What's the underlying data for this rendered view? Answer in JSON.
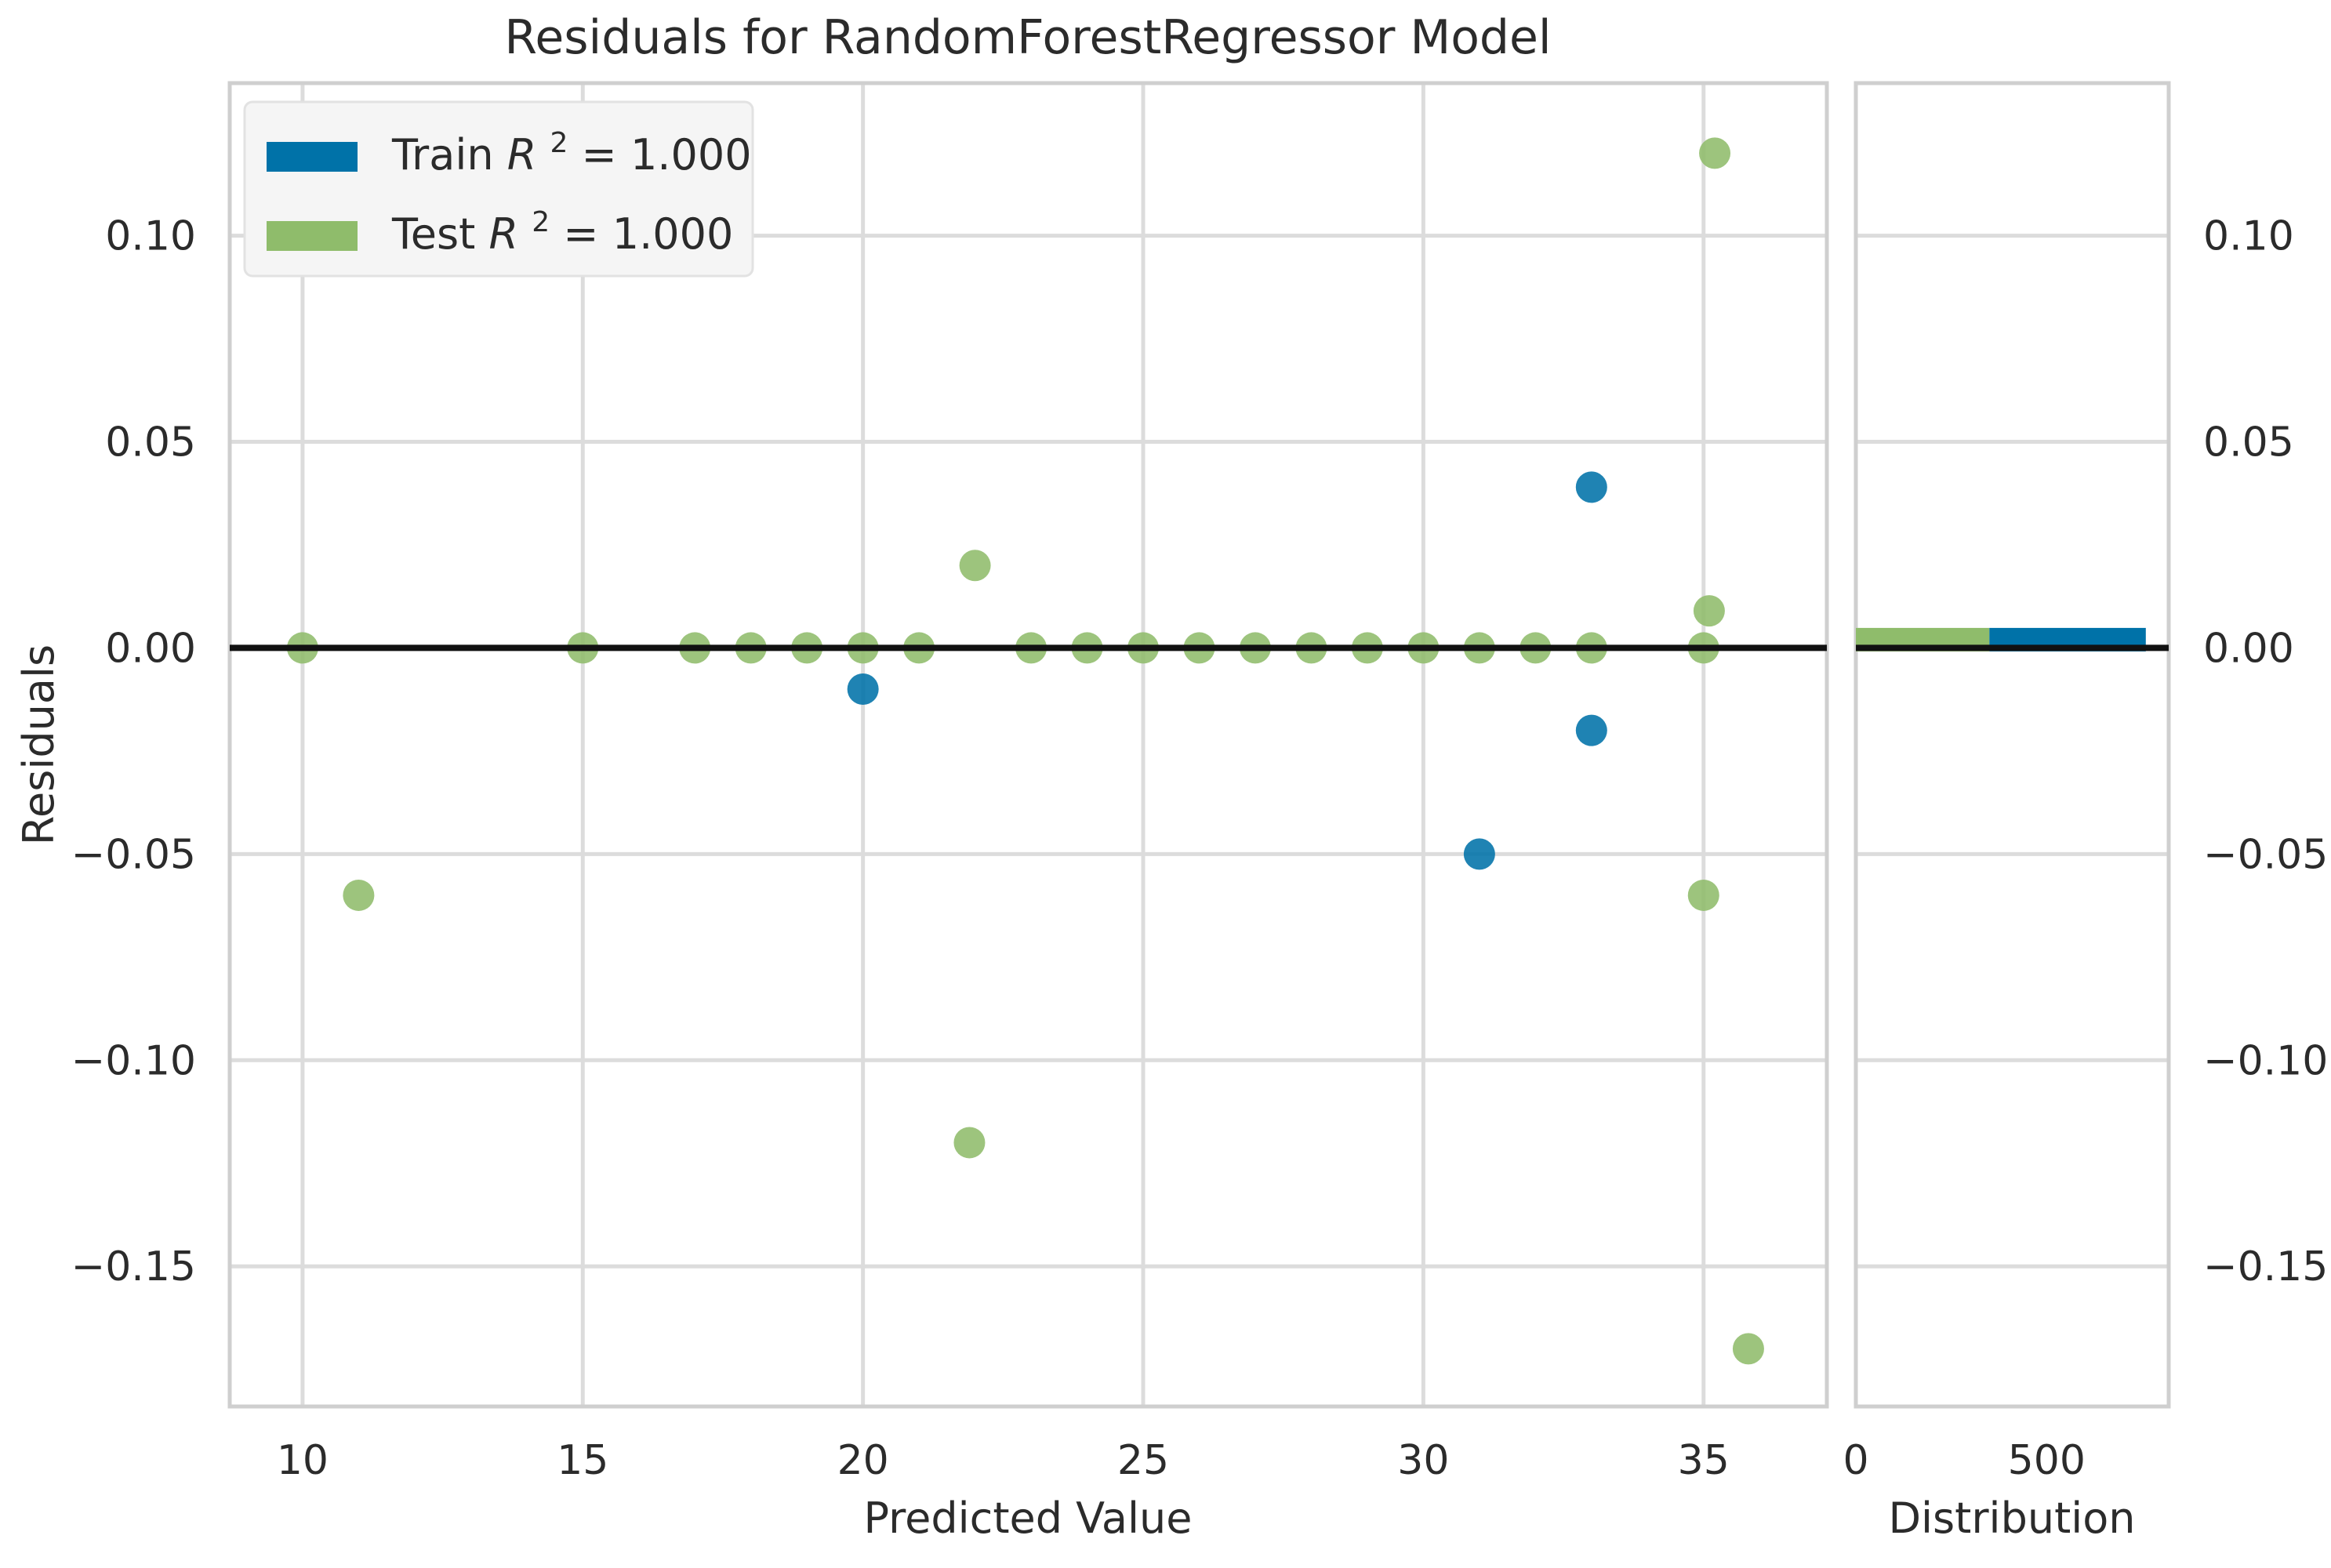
{
  "chart_data": {
    "type": "scatter",
    "title": "Residuals for RandomForestRegressor Model",
    "xlabel": "Predicted Value",
    "ylabel": "Residuals",
    "xlim": [
      8.7,
      37.2
    ],
    "ylim": [
      -0.184,
      0.137
    ],
    "xticks": [
      10,
      15,
      20,
      25,
      30,
      35
    ],
    "yticks": [
      0.1,
      0.05,
      0.0,
      -0.05,
      -0.1,
      -0.15
    ],
    "ytick_labels": [
      "0.10",
      "0.05",
      "0.00",
      "−0.05",
      "−0.10",
      "−0.15"
    ],
    "grid": true,
    "legend_position": "top-left",
    "colors": {
      "train": "#0072a8",
      "test": "#8fbc6b",
      "zero_line": "#111111",
      "grid": "#dcdcdc",
      "frame": "#cfcfcf"
    },
    "series": [
      {
        "name": "Train R² = 1.000",
        "legend_prefix": "Train",
        "legend_value": "1.000",
        "color": "#0072a8",
        "points": [
          {
            "x": 20,
            "y": -0.01
          },
          {
            "x": 33,
            "y": 0.039
          },
          {
            "x": 33,
            "y": -0.02
          },
          {
            "x": 31,
            "y": -0.05
          }
        ]
      },
      {
        "name": "Test R² = 1.000",
        "legend_prefix": "Test",
        "legend_value": "1.000",
        "color": "#8fbc6b",
        "points": [
          {
            "x": 10,
            "y": 0.0
          },
          {
            "x": 15,
            "y": 0.0
          },
          {
            "x": 17,
            "y": 0.0
          },
          {
            "x": 18,
            "y": 0.0
          },
          {
            "x": 19,
            "y": 0.0
          },
          {
            "x": 20,
            "y": 0.0
          },
          {
            "x": 21,
            "y": 0.0
          },
          {
            "x": 23,
            "y": 0.0
          },
          {
            "x": 24,
            "y": 0.0
          },
          {
            "x": 25,
            "y": 0.0
          },
          {
            "x": 26,
            "y": 0.0
          },
          {
            "x": 27,
            "y": 0.0
          },
          {
            "x": 28,
            "y": 0.0
          },
          {
            "x": 29,
            "y": 0.0
          },
          {
            "x": 30,
            "y": 0.0
          },
          {
            "x": 31,
            "y": 0.0
          },
          {
            "x": 32,
            "y": 0.0
          },
          {
            "x": 33,
            "y": 0.0
          },
          {
            "x": 35,
            "y": 0.0
          },
          {
            "x": 11,
            "y": -0.06
          },
          {
            "x": 22,
            "y": 0.02
          },
          {
            "x": 21.9,
            "y": -0.12
          },
          {
            "x": 35.2,
            "y": 0.12
          },
          {
            "x": 35.1,
            "y": 0.009
          },
          {
            "x": 35,
            "y": -0.06
          },
          {
            "x": 35.8,
            "y": -0.17
          }
        ]
      }
    ],
    "distribution": {
      "xlabel": "Distribution",
      "xticks": [
        0,
        500
      ],
      "xlim": [
        0,
        820
      ],
      "ylim": [
        -0.184,
        0.137
      ],
      "y_right_ticks": [
        0.1,
        0.05,
        0.0,
        -0.05,
        -0.1,
        -0.15
      ],
      "y_right_labels": [
        "0.10",
        "0.05",
        "0.00",
        "−0.05",
        "−0.10",
        "−0.15"
      ],
      "bars": [
        {
          "series": "Test",
          "y": 0.002,
          "start": 0,
          "count": 350,
          "color": "#8fbc6b"
        },
        {
          "series": "Train",
          "y": 0.002,
          "start": 350,
          "count": 410,
          "color": "#0072a8"
        }
      ]
    }
  }
}
